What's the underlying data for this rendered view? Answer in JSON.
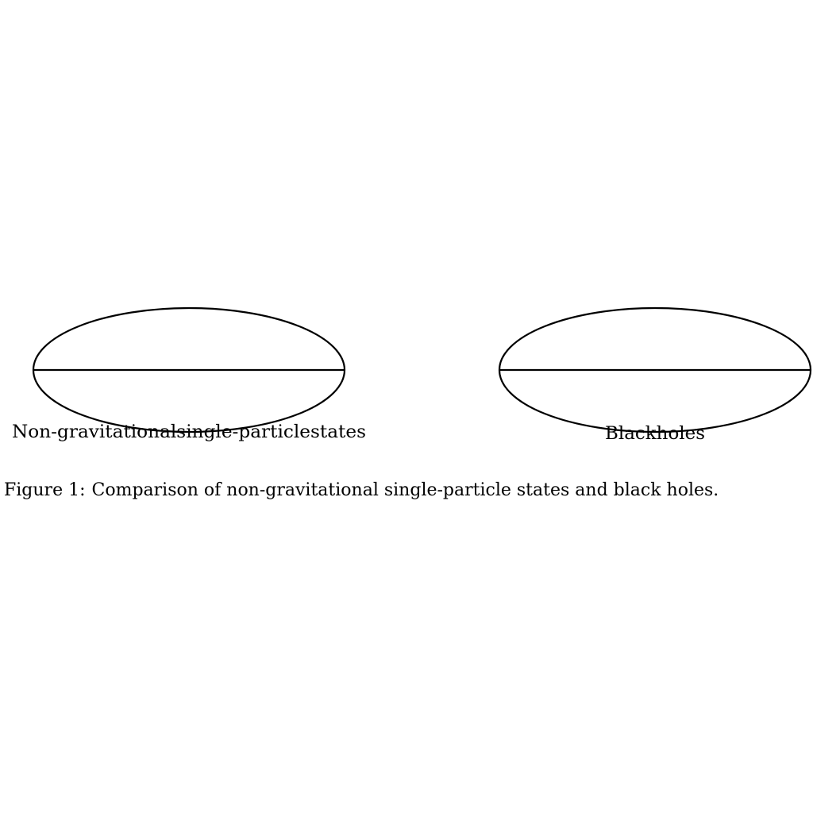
{
  "diagram": {
    "panels": [
      {
        "label": "Non-gravitationalsingle-particlestates"
      },
      {
        "label": "Blackholes"
      }
    ]
  },
  "caption": {
    "number": "Figure 1:",
    "text": "Comparison of non-gravitational single-particle states and black holes."
  },
  "colors": {
    "stroke": "#000000",
    "background": "#ffffff"
  }
}
